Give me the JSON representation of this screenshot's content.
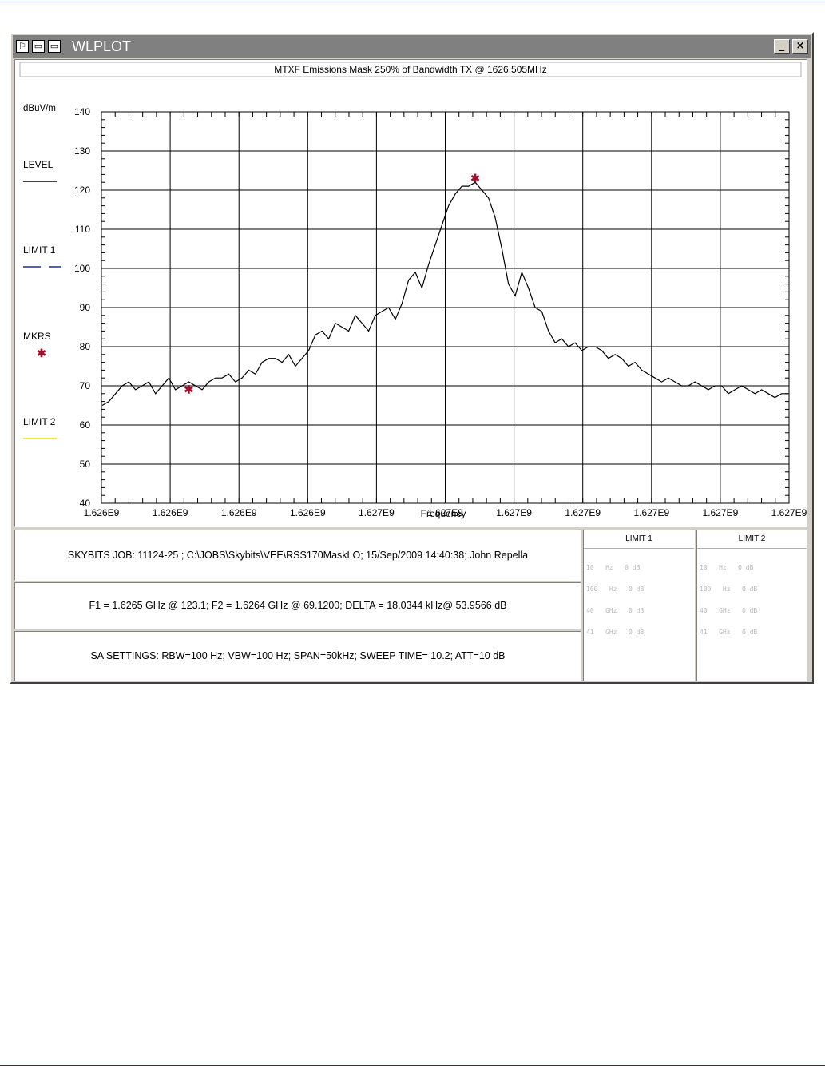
{
  "window": {
    "title": "WLPLOT",
    "buttons": {
      "minimize": "_",
      "close": "×"
    }
  },
  "plot": {
    "title": "MTXF Emissions Mask 250% of Bandwidth TX @ 1626.505MHz",
    "y_unit": "dBuV/m",
    "xlabel": "Frequency",
    "legend": [
      {
        "label": "LEVEL",
        "color": "#000000",
        "style": "solid"
      },
      {
        "label": "LIMIT 1",
        "color": "#1a2aa0",
        "style": "dashed"
      },
      {
        "label": "MKRS",
        "color": "#a0102a",
        "style": "star"
      },
      {
        "label": "LIMIT 2",
        "color": "#e8e000",
        "style": "solid"
      }
    ]
  },
  "chart_data": {
    "type": "line",
    "title": "MTXF Emissions Mask 250% of Bandwidth TX @ 1626.505MHz",
    "xlabel": "Frequency",
    "ylabel": "dBuV/m",
    "ylim": [
      40,
      140
    ],
    "grid": true,
    "legend_placement": "left",
    "x_tick_labels": [
      "1.626E9",
      "1.626E9",
      "1.626E9",
      "1.626E9",
      "1.627E9",
      "1.627E9",
      "1.627E9",
      "1.627E9",
      "1.627E9",
      "1.627E9",
      "1.627E9"
    ],
    "y_ticks": [
      40,
      50,
      60,
      70,
      80,
      90,
      100,
      110,
      120,
      130,
      140
    ],
    "series": [
      {
        "name": "LEVEL",
        "color": "#000000",
        "values": [
          65,
          66,
          68,
          70,
          71,
          69,
          70,
          71,
          68,
          70,
          72,
          69,
          70,
          71,
          70,
          69,
          71,
          72,
          72,
          73,
          71,
          72,
          74,
          73,
          76,
          77,
          77,
          76,
          78,
          75,
          77,
          79,
          83,
          84,
          82,
          86,
          85,
          84,
          88,
          86,
          84,
          88,
          89,
          90,
          87,
          91,
          97,
          99,
          95,
          101,
          106,
          111,
          116,
          119,
          121,
          121,
          122,
          120,
          118,
          113,
          105,
          96,
          93,
          99,
          95,
          90,
          89,
          84,
          81,
          82,
          80,
          81,
          79,
          80,
          80,
          79,
          77,
          78,
          77,
          75,
          76,
          74,
          73,
          72,
          71,
          72,
          71,
          70,
          70,
          71,
          70,
          69,
          70,
          70,
          68,
          69,
          70,
          69,
          68,
          69,
          68,
          67,
          68,
          68
        ]
      }
    ],
    "markers": [
      {
        "label": "F1",
        "x": 1626500000,
        "y": 123.1
      },
      {
        "label": "F2",
        "x": 1626400000,
        "y": 69.12
      }
    ]
  },
  "info": {
    "job": "SKYBITS  JOB: 11124-25   ;  C:\\JOBS\\Skybits\\VEE\\RSS170MaskLO;     15/Sep/2009 14:40:38; John Repella",
    "markers": "F1 = 1.6265 GHz @ 123.1;    F2 = 1.6264 GHz @ 69.1200;    DELTA = 18.0344 kHz@ 53.9566 dB",
    "settings": "SA SETTINGS: RBW=100 Hz; VBW=100 Hz; SPAN=50kHz; SWEEP TIME= 10.2; ATT=10 dB"
  },
  "limits": [
    {
      "title": "LIMIT 1",
      "rows": [
        "10   Hz   0 dB",
        "100   Hz   0 dB",
        "40   GHz   0 dB",
        "41   GHz   0 dB"
      ]
    },
    {
      "title": "LIMIT 2",
      "rows": [
        "10   Hz   0 dB",
        "100   Hz   0 dB",
        "40   GHz   0 dB",
        "41   GHz   0 dB"
      ]
    }
  ]
}
